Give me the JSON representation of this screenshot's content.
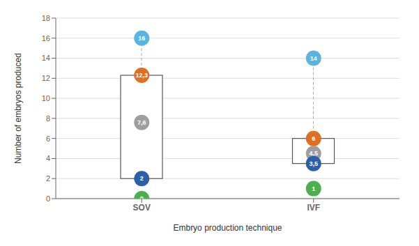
{
  "chart_data": {
    "type": "box",
    "xlabel": "Embryo production technique",
    "ylabel": "Number of embryos produced",
    "categories": [
      "SOV",
      "IVF"
    ],
    "stats": {
      "max": {
        "color": "#5ab4e0",
        "values": [
          16,
          14
        ],
        "value_labels": [
          "16",
          "14"
        ]
      },
      "q3": {
        "color": "#e07020",
        "values": [
          12.3,
          6
        ],
        "value_labels": [
          "12,3",
          "6"
        ]
      },
      "mean": {
        "color": "#9e9e9e",
        "values": [
          7.6,
          4.5
        ],
        "value_labels": [
          "7,6",
          "4,5"
        ]
      },
      "q1": {
        "color": "#2b5faa",
        "values": [
          2,
          3.5
        ],
        "value_labels": [
          "2",
          "3,5"
        ]
      },
      "min": {
        "color": "#4caf50",
        "values": [
          0,
          1
        ],
        "value_labels": [
          "0",
          "1"
        ]
      }
    },
    "ylim": [
      0,
      18
    ],
    "yticks": [
      0,
      2,
      4,
      6,
      8,
      10,
      12,
      14,
      16,
      18
    ],
    "grid": true,
    "data_labels": true
  }
}
